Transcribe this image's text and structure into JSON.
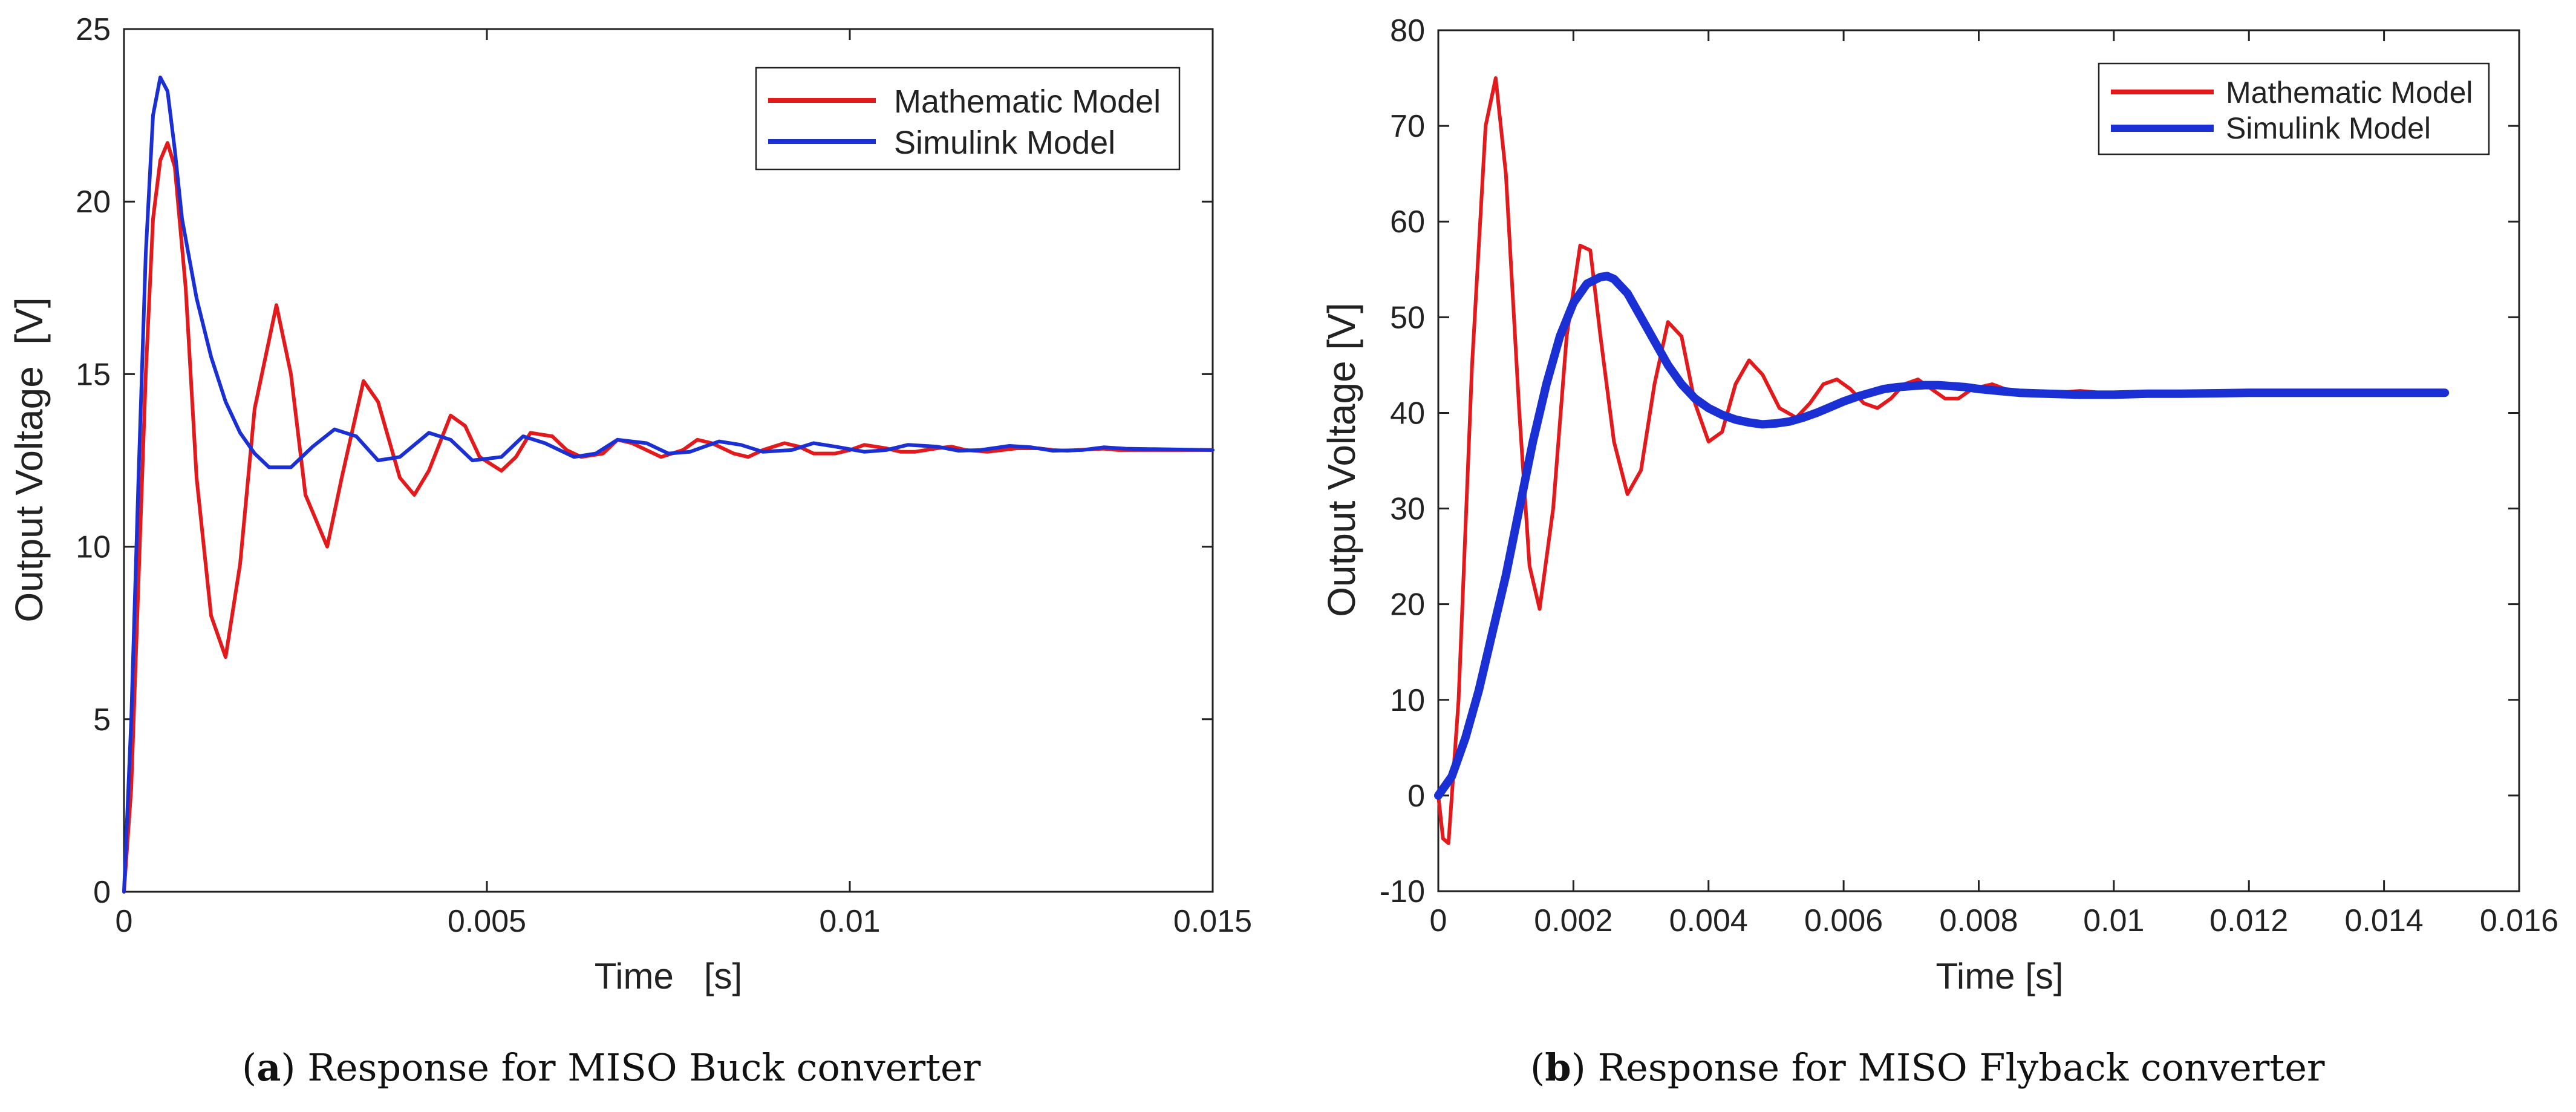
{
  "chart_data": [
    {
      "type": "line",
      "title": "",
      "xlabel": "Time   [s]",
      "ylabel": "Output Voltage  [V]",
      "xlim": [
        0,
        0.015
      ],
      "ylim": [
        0,
        25
      ],
      "xticks": [
        0,
        0.005,
        0.01,
        0.015
      ],
      "yticks": [
        0,
        5,
        10,
        15,
        20,
        25
      ],
      "xtick_labels": [
        "0",
        "0.005",
        "0.01",
        "0.015"
      ],
      "ytick_labels": [
        "0",
        "5",
        "10",
        "15",
        "20",
        "25"
      ],
      "legend_position": "top-right",
      "series": [
        {
          "name": "Mathematic Model",
          "color": "#e3191c",
          "x": [
            0,
            0.0001,
            0.0002,
            0.0003,
            0.0004,
            0.0005,
            0.0006,
            0.0007,
            0.00085,
            0.001,
            0.0012,
            0.0014,
            0.0016,
            0.0018,
            0.0021,
            0.0023,
            0.0025,
            0.0028,
            0.003,
            0.0033,
            0.0035,
            0.0038,
            0.004,
            0.0042,
            0.0045,
            0.0047,
            0.0049,
            0.0052,
            0.0054,
            0.0056,
            0.0059,
            0.0061,
            0.0063,
            0.0066,
            0.0068,
            0.007,
            0.0072,
            0.0074,
            0.0077,
            0.0079,
            0.0081,
            0.0084,
            0.0086,
            0.0088,
            0.0091,
            0.0093,
            0.0095,
            0.0098,
            0.01,
            0.0102,
            0.0105,
            0.0107,
            0.0109,
            0.0112,
            0.0114,
            0.0116,
            0.0119,
            0.0121,
            0.0123,
            0.0126,
            0.0128,
            0.013,
            0.0133,
            0.0135,
            0.0137,
            0.014,
            0.015
          ],
          "y": [
            0,
            3,
            9,
            15,
            19.5,
            21.2,
            21.7,
            21.0,
            17.5,
            12.0,
            8.0,
            6.8,
            9.5,
            14.0,
            17.0,
            15.0,
            11.5,
            10.0,
            12.0,
            14.8,
            14.2,
            12.0,
            11.5,
            12.2,
            13.8,
            13.5,
            12.6,
            12.2,
            12.6,
            13.3,
            13.2,
            12.8,
            12.6,
            12.7,
            13.1,
            13.0,
            12.8,
            12.6,
            12.8,
            13.1,
            13.0,
            12.7,
            12.6,
            12.8,
            13.0,
            12.9,
            12.7,
            12.7,
            12.8,
            12.95,
            12.85,
            12.75,
            12.75,
            12.85,
            12.9,
            12.8,
            12.75,
            12.8,
            12.85,
            12.85,
            12.8,
            12.78,
            12.82,
            12.84,
            12.8,
            12.8,
            12.8
          ]
        },
        {
          "name": "Simulink Model",
          "color": "#1a2fd4",
          "x": [
            0,
            0.0001,
            0.0002,
            0.0003,
            0.0004,
            0.0005,
            0.0006,
            0.0007,
            0.0008,
            0.001,
            0.0012,
            0.0014,
            0.0016,
            0.0018,
            0.002,
            0.0023,
            0.0026,
            0.0029,
            0.0032,
            0.0035,
            0.0038,
            0.0042,
            0.0045,
            0.0048,
            0.0052,
            0.0055,
            0.0058,
            0.0062,
            0.0065,
            0.0068,
            0.0072,
            0.0075,
            0.0078,
            0.0082,
            0.0085,
            0.0088,
            0.0092,
            0.0095,
            0.0098,
            0.0102,
            0.0105,
            0.0108,
            0.0112,
            0.0115,
            0.0118,
            0.0122,
            0.0125,
            0.0128,
            0.0132,
            0.0135,
            0.0138,
            0.015
          ],
          "y": [
            0,
            5,
            12,
            18.5,
            22.5,
            23.6,
            23.2,
            21.5,
            19.5,
            17.2,
            15.5,
            14.2,
            13.3,
            12.7,
            12.3,
            12.3,
            12.9,
            13.4,
            13.2,
            12.5,
            12.6,
            13.3,
            13.1,
            12.5,
            12.6,
            13.2,
            13.0,
            12.6,
            12.7,
            13.1,
            13.0,
            12.7,
            12.75,
            13.05,
            12.95,
            12.75,
            12.8,
            13.0,
            12.9,
            12.75,
            12.8,
            12.95,
            12.9,
            12.78,
            12.8,
            12.92,
            12.88,
            12.78,
            12.8,
            12.88,
            12.84,
            12.8
          ]
        }
      ]
    },
    {
      "type": "line",
      "title": "",
      "xlabel": "Time [s]",
      "ylabel": "Output Voltage [V]",
      "xlim": [
        0,
        0.016
      ],
      "ylim": [
        -10,
        80
      ],
      "xticks": [
        0,
        0.002,
        0.004,
        0.006,
        0.008,
        0.01,
        0.012,
        0.014,
        0.016
      ],
      "yticks": [
        -10,
        0,
        10,
        20,
        30,
        40,
        50,
        60,
        70,
        80
      ],
      "xtick_labels": [
        "0",
        "0.002",
        "0.004",
        "0.006",
        "0.008",
        "0.01",
        "0.012",
        "0.014",
        "0.016"
      ],
      "ytick_labels": [
        "-10",
        "0",
        "10",
        "20",
        "30",
        "40",
        "50",
        "60",
        "70",
        "80"
      ],
      "legend_position": "top-right",
      "series": [
        {
          "name": "Mathematic Model",
          "color": "#e3191c",
          "x": [
            0,
            7e-05,
            0.00015,
            0.0003,
            0.0005,
            0.0007,
            0.00085,
            0.001,
            0.0012,
            0.00135,
            0.0015,
            0.0017,
            0.0019,
            0.0021,
            0.00225,
            0.0024,
            0.0026,
            0.0028,
            0.003,
            0.0032,
            0.0034,
            0.0036,
            0.0038,
            0.004,
            0.0042,
            0.0044,
            0.0046,
            0.0048,
            0.00505,
            0.0053,
            0.0055,
            0.0057,
            0.0059,
            0.0061,
            0.0063,
            0.0065,
            0.0067,
            0.0069,
            0.0071,
            0.0073,
            0.0075,
            0.0077,
            0.0079,
            0.0082,
            0.0085,
            0.0088,
            0.009,
            0.0095,
            0.01,
            0.0105,
            0.011,
            0.0115,
            0.012,
            0.0125,
            0.013,
            0.0135,
            0.014,
            0.0149
          ],
          "y": [
            0,
            -4.5,
            -5,
            10,
            45,
            70,
            75,
            65,
            40,
            24,
            19.5,
            30,
            48,
            57.5,
            57,
            48,
            37,
            31.5,
            34,
            43,
            49.5,
            48,
            41,
            37,
            38,
            43,
            45.5,
            44,
            40.5,
            39.5,
            41,
            43,
            43.5,
            42.5,
            41,
            40.5,
            41.5,
            43,
            43.5,
            42.5,
            41.5,
            41.5,
            42.5,
            43,
            42.2,
            41.8,
            42,
            42.3,
            42,
            42,
            42.1,
            42,
            42,
            42,
            42,
            42,
            42,
            42
          ]
        },
        {
          "name": "Simulink Model",
          "color": "#1a2fd4",
          "x": [
            0,
            0.0002,
            0.0004,
            0.0006,
            0.0008,
            0.001,
            0.0012,
            0.0014,
            0.0016,
            0.0018,
            0.002,
            0.0022,
            0.0024,
            0.0025,
            0.0026,
            0.0028,
            0.003,
            0.0032,
            0.0034,
            0.0036,
            0.0038,
            0.004,
            0.0042,
            0.0044,
            0.0046,
            0.0048,
            0.005,
            0.0052,
            0.0054,
            0.0056,
            0.0058,
            0.006,
            0.0062,
            0.0064,
            0.0066,
            0.0068,
            0.007,
            0.0072,
            0.0074,
            0.0076,
            0.0078,
            0.008,
            0.0083,
            0.0086,
            0.009,
            0.0095,
            0.01,
            0.0105,
            0.011,
            0.012,
            0.013,
            0.014,
            0.0149
          ],
          "y": [
            0,
            2,
            6,
            11,
            17,
            23,
            30,
            37,
            43,
            48,
            51.5,
            53.5,
            54.2,
            54.3,
            54,
            52.5,
            50,
            47.5,
            45,
            43,
            41.5,
            40.5,
            39.8,
            39.3,
            39,
            38.8,
            38.9,
            39.1,
            39.5,
            40,
            40.6,
            41.2,
            41.7,
            42.1,
            42.5,
            42.7,
            42.8,
            42.9,
            42.9,
            42.8,
            42.7,
            42.5,
            42.3,
            42.1,
            42,
            41.9,
            41.9,
            42,
            42,
            42.1,
            42.1,
            42.1,
            42.1
          ]
        }
      ]
    }
  ],
  "captions": {
    "a_label": "a",
    "a_text": " Response for MISO Buck converter",
    "b_label": "b",
    "b_text": " Response for MISO Flyback converter"
  }
}
